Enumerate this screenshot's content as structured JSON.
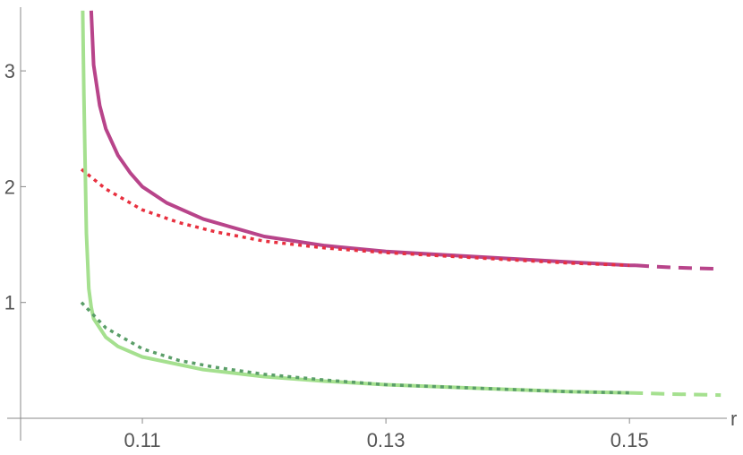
{
  "chart_data": {
    "type": "line",
    "title": "",
    "xlabel": "r",
    "ylabel": "",
    "xlim": [
      0.1,
      0.158
    ],
    "ylim": [
      0,
      3.55
    ],
    "xticks": [
      0.11,
      0.13,
      0.15
    ],
    "xtick_labels": [
      "0.11",
      "0.13",
      "0.15"
    ],
    "yticks": [
      1,
      2,
      3
    ],
    "ytick_labels": [
      "1",
      "2",
      "3"
    ],
    "grid": false,
    "legend": "none",
    "series": [
      {
        "color": "#b8448a",
        "style": "solid",
        "x": [
          0.1058,
          0.106,
          0.1065,
          0.107,
          0.108,
          0.109,
          0.11,
          0.112,
          0.115,
          0.12,
          0.125,
          0.13,
          0.135,
          0.14,
          0.145,
          0.15,
          0.1505
        ],
        "y": [
          3.52,
          3.05,
          2.7,
          2.5,
          2.27,
          2.12,
          2.0,
          1.86,
          1.72,
          1.57,
          1.49,
          1.44,
          1.41,
          1.38,
          1.35,
          1.32,
          1.32
        ]
      },
      {
        "color": "#b8448a",
        "style": "dashed",
        "x": [
          0.1505,
          0.152,
          0.154,
          0.1575
        ],
        "y": [
          1.32,
          1.31,
          1.3,
          1.29
        ]
      },
      {
        "color": "#e8303f",
        "style": "dotted",
        "x": [
          0.105,
          0.107,
          0.11,
          0.113,
          0.116,
          0.12,
          0.125,
          0.13,
          0.135,
          0.14,
          0.145,
          0.15
        ],
        "y": [
          2.15,
          1.98,
          1.8,
          1.69,
          1.61,
          1.53,
          1.47,
          1.43,
          1.4,
          1.37,
          1.34,
          1.32
        ]
      },
      {
        "color": "#a5e08f",
        "style": "solid",
        "x": [
          0.1051,
          0.1052,
          0.1053,
          0.1054,
          0.1056,
          0.1058,
          0.106,
          0.107,
          0.108,
          0.11,
          0.115,
          0.12,
          0.125,
          0.13,
          0.135,
          0.14,
          0.145,
          0.15
        ],
        "y": [
          3.52,
          2.8,
          2.2,
          1.6,
          1.12,
          0.96,
          0.86,
          0.7,
          0.62,
          0.53,
          0.42,
          0.36,
          0.32,
          0.29,
          0.27,
          0.25,
          0.23,
          0.22
        ]
      },
      {
        "color": "#a5e08f",
        "style": "dashed",
        "x": [
          0.15,
          0.153,
          0.1575
        ],
        "y": [
          0.22,
          0.21,
          0.2
        ]
      },
      {
        "color": "#5a9e68",
        "style": "dotted",
        "x": [
          0.105,
          0.107,
          0.11,
          0.113,
          0.116,
          0.12,
          0.125,
          0.13,
          0.135,
          0.14,
          0.145,
          0.15
        ],
        "y": [
          1.0,
          0.78,
          0.6,
          0.5,
          0.44,
          0.38,
          0.33,
          0.29,
          0.27,
          0.25,
          0.23,
          0.22
        ]
      }
    ]
  }
}
